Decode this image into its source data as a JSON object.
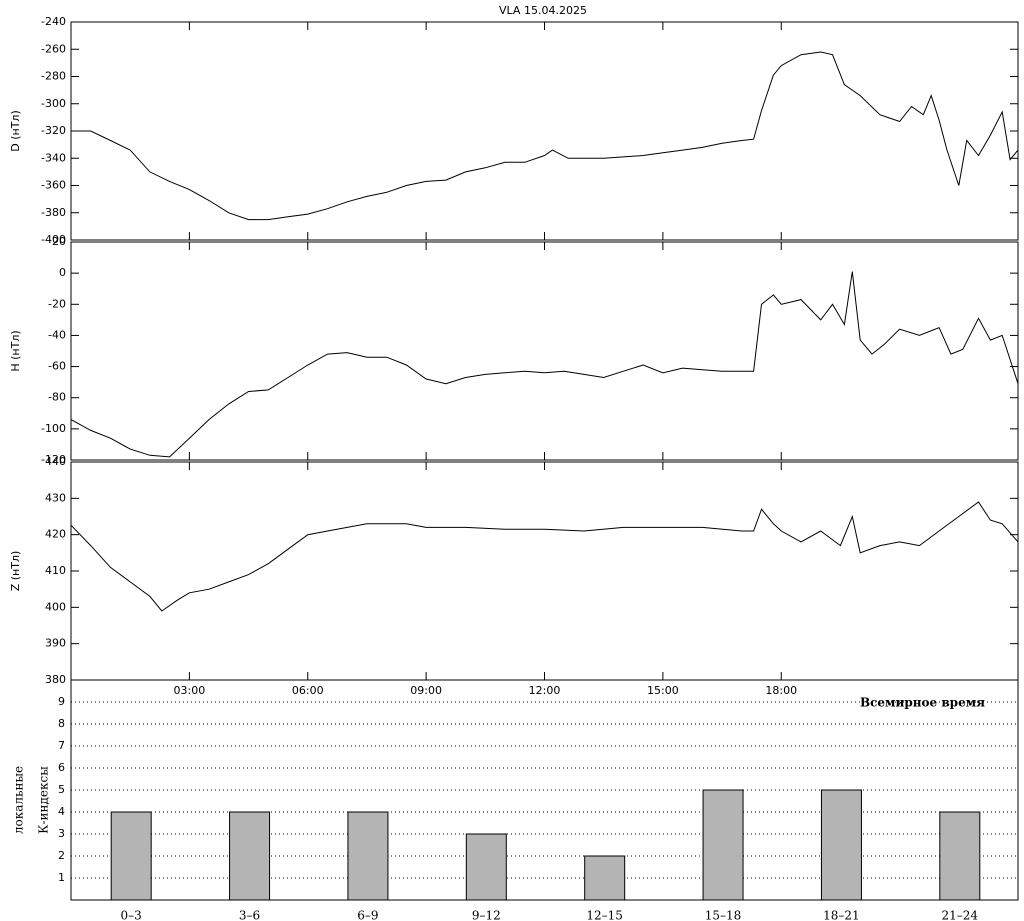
{
  "chart_data": [
    {
      "type": "line",
      "title": "VLA   15.04.2025",
      "ylabel": "D (нТл)",
      "color": "#000000",
      "xlim": [
        0,
        24
      ],
      "ylim": [
        -400,
        -240
      ],
      "yticks": [
        -400,
        -380,
        -360,
        -340,
        -320,
        -300,
        -280,
        -260,
        -240
      ],
      "x": [
        0,
        0.5,
        1,
        1.5,
        2,
        2.5,
        3,
        3.5,
        4,
        4.5,
        5,
        5.5,
        6,
        6.5,
        7,
        7.5,
        8,
        8.5,
        9,
        9.5,
        10,
        10.5,
        11,
        11.5,
        12,
        12.2,
        12.6,
        13,
        13.5,
        14,
        14.5,
        15,
        15.5,
        16,
        16.5,
        17,
        17.3,
        17.5,
        17.8,
        18,
        18.5,
        19,
        19.3,
        19.6,
        20,
        20.5,
        21,
        21.3,
        21.6,
        21.8,
        22,
        22.2,
        22.5,
        22.7,
        23,
        23.3,
        23.6,
        23.8,
        24
      ],
      "values": [
        -320,
        -320,
        -327,
        -334,
        -350,
        -357,
        -363,
        -371,
        -380,
        -385,
        -385,
        -383,
        -381,
        -377,
        -372,
        -368,
        -365,
        -360,
        -357,
        -356,
        -350,
        -347,
        -343,
        -343,
        -338,
        -334,
        -340,
        -340,
        -340,
        -339,
        -338,
        -336,
        -334,
        -332,
        -329,
        -327,
        -326,
        -305,
        -279,
        -272,
        -264,
        -262,
        -264,
        -286,
        -294,
        -308,
        -313,
        -302,
        -308,
        -294,
        -312,
        -334,
        -360,
        -327,
        -338,
        -323,
        -306,
        -341,
        -334
      ]
    },
    {
      "type": "line",
      "ylabel": "H (нТл)",
      "color": "#000000",
      "xlim": [
        0,
        24
      ],
      "ylim": [
        -120,
        20
      ],
      "yticks": [
        -120,
        -100,
        -80,
        -60,
        -40,
        -20,
        0,
        20
      ],
      "x": [
        0,
        0.5,
        1,
        1.5,
        2,
        2.5,
        3,
        3.5,
        4,
        4.5,
        5,
        5.5,
        6,
        6.5,
        7,
        7.5,
        8,
        8.5,
        9,
        9.5,
        10,
        10.5,
        11,
        11.5,
        12,
        12.5,
        13,
        13.5,
        14,
        14.5,
        15,
        15.5,
        16,
        16.5,
        17,
        17.3,
        17.5,
        17.8,
        18,
        18.5,
        19,
        19.3,
        19.6,
        19.8,
        20,
        20.3,
        20.6,
        21,
        21.5,
        22,
        22.3,
        22.6,
        23,
        23.3,
        23.6,
        24
      ],
      "values": [
        -94,
        -101,
        -106,
        -113,
        -117,
        -118,
        -106,
        -94,
        -84,
        -76,
        -75,
        -67,
        -59,
        -52,
        -51,
        -54,
        -54,
        -59,
        -68,
        -71,
        -67,
        -65,
        -64,
        -63,
        -64,
        -63,
        -65,
        -67,
        -63,
        -59,
        -64,
        -61,
        -62,
        -63,
        -63,
        -63,
        -20,
        -14,
        -20,
        -17,
        -30,
        -20,
        -33,
        1,
        -43,
        -52,
        -46,
        -36,
        -40,
        -35,
        -52,
        -49,
        -29,
        -43,
        -40,
        -71
      ]
    },
    {
      "type": "line",
      "ylabel": "Z (нТл)",
      "xlabel": "Всемирное время",
      "color": "#000000",
      "xlim": [
        0,
        24
      ],
      "ylim": [
        380,
        440
      ],
      "yticks": [
        380,
        390,
        400,
        410,
        420,
        430,
        440
      ],
      "xticks": [
        {
          "value": 3,
          "label": "03:00"
        },
        {
          "value": 6,
          "label": "06:00"
        },
        {
          "value": 9,
          "label": "09:00"
        },
        {
          "value": 12,
          "label": "12:00"
        },
        {
          "value": 15,
          "label": "15:00"
        },
        {
          "value": 18,
          "label": "18:00"
        }
      ],
      "x": [
        0,
        0.5,
        1,
        1.5,
        2,
        2.3,
        2.7,
        3,
        3.5,
        4,
        4.5,
        5,
        5.5,
        6,
        6.5,
        7,
        7.5,
        8,
        8.5,
        9,
        10,
        11,
        12,
        13,
        14,
        15,
        16,
        17,
        17.3,
        17.5,
        17.8,
        18,
        18.5,
        19,
        19.5,
        19.8,
        20,
        20.5,
        21,
        21.5,
        22,
        22.5,
        23,
        23.3,
        23.6,
        24
      ],
      "values": [
        422.6,
        417,
        411,
        407,
        403,
        399,
        402,
        404,
        405,
        407,
        409,
        412,
        416,
        420,
        421,
        422,
        423,
        423,
        423,
        422,
        422,
        421.5,
        421.5,
        421,
        422,
        422,
        422,
        421,
        421,
        427,
        423,
        421,
        418,
        421,
        417,
        425,
        415,
        417,
        418,
        417,
        421,
        425,
        429,
        424,
        423,
        418
      ]
    },
    {
      "type": "bar",
      "ylabel": [
        "локальные",
        "К-индексы"
      ],
      "color": "#b4b4b4",
      "grid": true,
      "categories": [
        "0–3",
        "3–6",
        "6–9",
        "9–12",
        "12–15",
        "15–18",
        "18–21",
        "21–24"
      ],
      "values": [
        4,
        4,
        4,
        3,
        2,
        5,
        5,
        4
      ],
      "ylim": [
        0,
        10
      ],
      "yticks": [
        1,
        2,
        3,
        4,
        5,
        6,
        7,
        8,
        9
      ]
    }
  ]
}
